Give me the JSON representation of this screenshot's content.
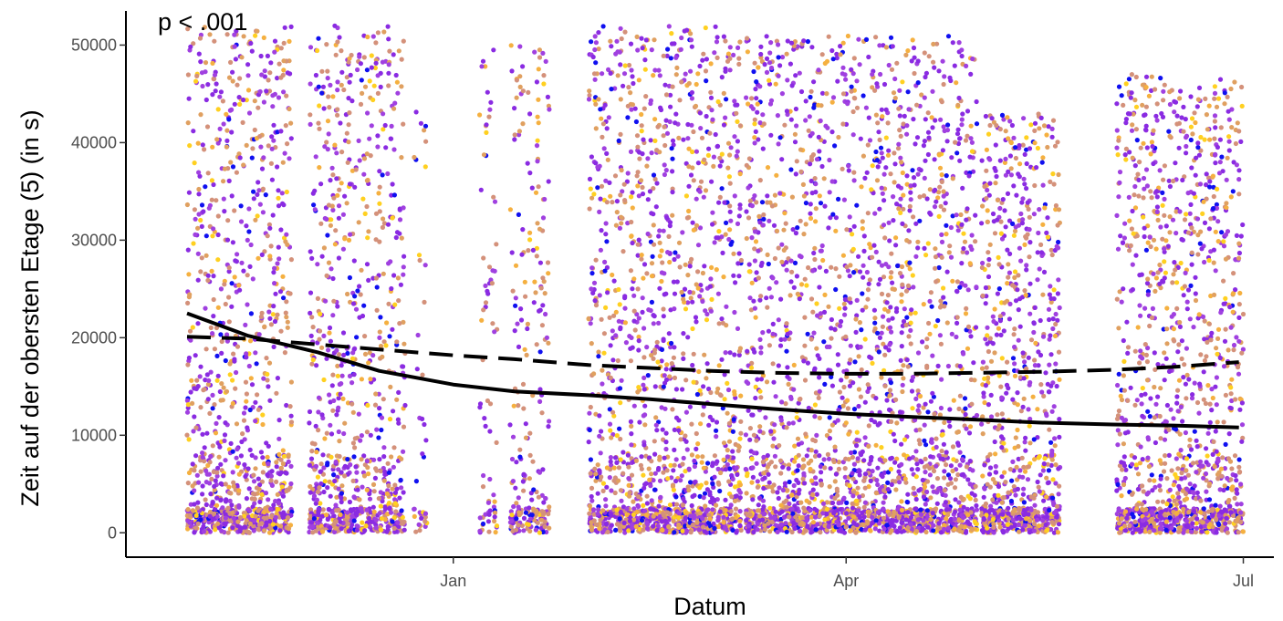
{
  "chart_data": {
    "type": "scatter",
    "title": "",
    "annotation": "p < .001",
    "xlabel": "Datum",
    "ylabel": "Zeit auf der obersten Etage (5) (in s)",
    "x_ticks": [
      {
        "label": "Jan",
        "date": "2021-01-01"
      },
      {
        "label": "Apr",
        "date": "2021-04-01"
      },
      {
        "label": "Jul",
        "date": "2021-07-01"
      }
    ],
    "xlim": [
      "2020-10-18",
      "2021-07-08"
    ],
    "y_ticks": [
      0,
      10000,
      20000,
      30000,
      40000,
      50000
    ],
    "ylim": [
      -2500,
      53500
    ],
    "grid": false,
    "legend": "none",
    "point_colors": [
      "#8a2be2",
      "#a040e0",
      "#d4917a",
      "#e0a060",
      "#f5b040",
      "#ffd020",
      "#1010f0"
    ],
    "point_color_weights": [
      28,
      22,
      20,
      12,
      7,
      5,
      6
    ],
    "date_clusters": [
      {
        "start": "2020-11-01",
        "end": "2020-11-24",
        "density": 1.0,
        "ymax": 52000
      },
      {
        "start": "2020-11-29",
        "end": "2020-12-20",
        "density": 0.9,
        "ymax": 52000
      },
      {
        "start": "2020-12-23",
        "end": "2020-12-25",
        "density": 0.3,
        "ymax": 49000
      },
      {
        "start": "2021-01-07",
        "end": "2021-01-10",
        "density": 0.4,
        "ymax": 50000
      },
      {
        "start": "2021-01-14",
        "end": "2021-01-22",
        "density": 0.6,
        "ymax": 50000
      },
      {
        "start": "2021-02-01",
        "end": "2021-03-07",
        "density": 1.0,
        "ymax": 52000
      },
      {
        "start": "2021-03-09",
        "end": "2021-04-30",
        "density": 1.0,
        "ymax": 51000
      },
      {
        "start": "2021-05-02",
        "end": "2021-05-19",
        "density": 1.0,
        "ymax": 43000
      },
      {
        "start": "2021-06-02",
        "end": "2021-06-30",
        "density": 1.0,
        "ymax": 47000
      }
    ],
    "series": [
      {
        "style": "solid",
        "x": [
          "2020-11-01",
          "2020-11-15",
          "2020-12-01",
          "2020-12-15",
          "2021-01-01",
          "2021-01-15",
          "2021-02-01",
          "2021-02-15",
          "2021-03-01",
          "2021-03-15",
          "2021-04-01",
          "2021-04-15",
          "2021-05-01",
          "2021-05-15",
          "2021-06-01",
          "2021-06-15",
          "2021-06-30"
        ],
        "y": [
          22500,
          20200,
          18500,
          16600,
          15200,
          14500,
          14100,
          13700,
          13200,
          12700,
          12200,
          11900,
          11600,
          11300,
          11100,
          11000,
          10800
        ]
      },
      {
        "style": "dashed",
        "x": [
          "2020-11-01",
          "2020-11-15",
          "2020-12-01",
          "2020-12-15",
          "2021-01-01",
          "2021-01-15",
          "2021-02-01",
          "2021-02-15",
          "2021-03-01",
          "2021-03-15",
          "2021-04-01",
          "2021-04-15",
          "2021-05-01",
          "2021-05-15",
          "2021-06-01",
          "2021-06-15",
          "2021-06-30"
        ],
        "y": [
          20100,
          19900,
          19300,
          18800,
          18200,
          17800,
          17200,
          16900,
          16600,
          16400,
          16300,
          16300,
          16400,
          16500,
          16700,
          17000,
          17500
        ]
      }
    ]
  }
}
